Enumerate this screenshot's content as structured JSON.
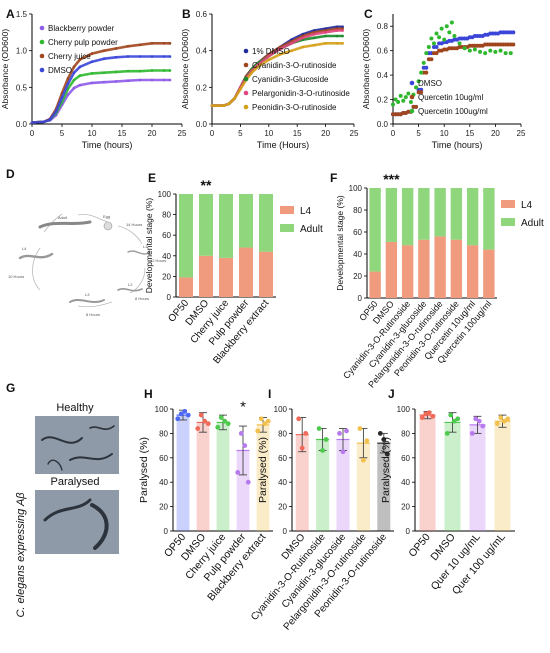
{
  "panel_letters": [
    "A",
    "B",
    "C",
    "D",
    "E",
    "F",
    "G",
    "H",
    "I",
    "J"
  ],
  "colors": {
    "purple": "#8e5ae8",
    "green": "#2fb82f",
    "brown": "#a0461e",
    "blue": "#3b46d8",
    "darkgreen": "#1a8a2a",
    "pink": "#e0457c",
    "gold": "#d4a017",
    "navy": "#1f2a9e",
    "l4": "#f09a7e",
    "adult": "#8fd67d",
    "red": "#f06a5a",
    "bar_blue": "#4c68f5",
    "bar_green": "#4ecb4e",
    "bar_purple": "#b879ef",
    "bar_gold": "#f2c04d",
    "bar_black": "#2a2a2a"
  },
  "D": {
    "labels": [
      "Egg",
      "L1",
      "L2",
      "L3",
      "L4",
      "Adult",
      "14 Hours",
      "12 Hours",
      "8 Hours",
      "8 Hours",
      "10 Hours"
    ]
  },
  "G": {
    "ylabel": "C. elegans expressing Aβ",
    "healthy": "Healthy",
    "paralysed": "Paralysed"
  },
  "chart_data": [
    {
      "panel": "A",
      "type": "line",
      "xlabel": "Time (hours)",
      "ylabel": "Absorbance (OD600)",
      "xlim": [
        0,
        25
      ],
      "ylim": [
        0,
        1.5
      ],
      "xticks": [
        "0",
        "5",
        "10",
        "15",
        "20",
        "25"
      ],
      "yticks": [
        "0.0",
        "0.5",
        "1.0",
        "1.5"
      ],
      "series": [
        {
          "name": "Blackberry powder",
          "color": "purple",
          "x": [
            0,
            2,
            3,
            4,
            5,
            6,
            7,
            8,
            10,
            12,
            14,
            16,
            18,
            20,
            22,
            23
          ],
          "y": [
            0.02,
            0.03,
            0.05,
            0.12,
            0.26,
            0.4,
            0.49,
            0.53,
            0.56,
            0.57,
            0.58,
            0.59,
            0.6,
            0.6,
            0.6,
            0.6
          ]
        },
        {
          "name": "Cherry pulp powder",
          "color": "green",
          "x": [
            0,
            2,
            3,
            4,
            5,
            6,
            7,
            8,
            10,
            12,
            14,
            16,
            18,
            20,
            22,
            23
          ],
          "y": [
            0.02,
            0.03,
            0.06,
            0.15,
            0.3,
            0.48,
            0.6,
            0.66,
            0.69,
            0.7,
            0.71,
            0.72,
            0.72,
            0.73,
            0.73,
            0.73
          ]
        },
        {
          "name": "Cherry juice",
          "color": "brown",
          "x": [
            0,
            2,
            3,
            4,
            5,
            6,
            7,
            8,
            10,
            12,
            14,
            16,
            18,
            20,
            22,
            23
          ],
          "y": [
            0.02,
            0.03,
            0.07,
            0.2,
            0.42,
            0.62,
            0.78,
            0.88,
            0.96,
            1.0,
            1.03,
            1.06,
            1.08,
            1.1,
            1.1,
            1.1
          ]
        },
        {
          "name": "DMSO",
          "color": "blue",
          "x": [
            0,
            2,
            3,
            4,
            5,
            6,
            7,
            8,
            10,
            12,
            14,
            16,
            18,
            20,
            22,
            23
          ],
          "y": [
            0.02,
            0.03,
            0.06,
            0.17,
            0.36,
            0.55,
            0.7,
            0.78,
            0.85,
            0.89,
            0.91,
            0.92,
            0.92,
            0.92,
            0.92,
            0.92
          ]
        }
      ]
    },
    {
      "panel": "B",
      "type": "line",
      "xlabel": "Time (Hours)",
      "ylabel": "Absorbance (OD600)",
      "xlim": [
        0,
        25
      ],
      "ylim": [
        0,
        0.6
      ],
      "xticks": [
        "0",
        "5",
        "10",
        "15",
        "20",
        "25"
      ],
      "yticks": [
        "0.0",
        "0.2",
        "0.4",
        "0.6"
      ],
      "series": [
        {
          "name": "1% DMSO",
          "color": "navy",
          "x": [
            0,
            2,
            3,
            4,
            5,
            6,
            7,
            8,
            10,
            12,
            14,
            16,
            18,
            20,
            22,
            23
          ],
          "y": [
            0.1,
            0.1,
            0.11,
            0.14,
            0.2,
            0.26,
            0.3,
            0.33,
            0.38,
            0.42,
            0.46,
            0.49,
            0.51,
            0.52,
            0.53,
            0.53
          ]
        },
        {
          "name": "Cyanidin-3-O-rutinoside",
          "color": "brown",
          "x": [
            0,
            2,
            3,
            4,
            5,
            6,
            7,
            8,
            10,
            12,
            14,
            16,
            18,
            20,
            22,
            23
          ],
          "y": [
            0.1,
            0.1,
            0.11,
            0.14,
            0.2,
            0.26,
            0.3,
            0.33,
            0.38,
            0.42,
            0.45,
            0.48,
            0.5,
            0.51,
            0.52,
            0.52
          ]
        },
        {
          "name": "Cyanidin-3-Glucoside",
          "color": "darkgreen",
          "x": [
            0,
            2,
            3,
            4,
            5,
            6,
            7,
            8,
            10,
            12,
            14,
            16,
            18,
            20,
            22,
            23
          ],
          "y": [
            0.1,
            0.1,
            0.11,
            0.14,
            0.2,
            0.25,
            0.3,
            0.33,
            0.37,
            0.41,
            0.44,
            0.46,
            0.47,
            0.48,
            0.48,
            0.48
          ]
        },
        {
          "name": "Pelargonidin-3-O-rutinoside",
          "color": "pink",
          "x": [
            0,
            2,
            3,
            4,
            5,
            6,
            7,
            8,
            10,
            12,
            14,
            16,
            18,
            20,
            22,
            23
          ],
          "y": [
            0.1,
            0.1,
            0.11,
            0.14,
            0.2,
            0.25,
            0.29,
            0.32,
            0.37,
            0.41,
            0.44,
            0.47,
            0.49,
            0.5,
            0.51,
            0.51
          ]
        },
        {
          "name": "Peonidin-3-O-rutinoside",
          "color": "gold",
          "x": [
            0,
            2,
            3,
            4,
            5,
            6,
            7,
            8,
            10,
            12,
            14,
            16,
            18,
            20,
            22,
            23
          ],
          "y": [
            0.1,
            0.1,
            0.11,
            0.14,
            0.19,
            0.24,
            0.28,
            0.31,
            0.35,
            0.38,
            0.4,
            0.42,
            0.43,
            0.44,
            0.44,
            0.44
          ]
        }
      ]
    },
    {
      "panel": "C",
      "type": "scatter",
      "xlabel": "Time (hours)",
      "ylabel": "Absorbance (OD600)",
      "xlim": [
        0,
        25
      ],
      "ylim": [
        0,
        0.9
      ],
      "xticks": [
        "0",
        "5",
        "10",
        "15",
        "20",
        "25"
      ],
      "yticks": [
        "0.0",
        "0.2",
        "0.4",
        "0.6",
        "0.8"
      ],
      "series": [
        {
          "name": "DMSO",
          "color": "blue",
          "x": [
            0,
            1,
            2,
            3,
            4,
            5,
            6,
            7,
            8,
            9,
            10,
            11,
            12,
            13,
            14,
            15,
            16,
            17,
            18,
            19,
            20,
            21,
            22,
            23
          ],
          "y": [
            0.08,
            0.08,
            0.09,
            0.1,
            0.14,
            0.28,
            0.46,
            0.58,
            0.63,
            0.66,
            0.67,
            0.68,
            0.69,
            0.7,
            0.7,
            0.71,
            0.72,
            0.72,
            0.73,
            0.74,
            0.74,
            0.75,
            0.75,
            0.75
          ]
        },
        {
          "name": "Quercetin 10ug/ml",
          "color": "brown",
          "x": [
            0,
            1,
            2,
            3,
            4,
            5,
            6,
            7,
            8,
            9,
            10,
            11,
            12,
            13,
            14,
            15,
            16,
            17,
            18,
            19,
            20,
            21,
            22,
            23
          ],
          "y": [
            0.08,
            0.08,
            0.09,
            0.1,
            0.14,
            0.26,
            0.42,
            0.53,
            0.58,
            0.6,
            0.61,
            0.62,
            0.62,
            0.63,
            0.63,
            0.64,
            0.64,
            0.64,
            0.65,
            0.65,
            0.65,
            0.65,
            0.65,
            0.65
          ]
        },
        {
          "name": "Quercetin 100ug/ml",
          "color": "green",
          "x": [
            0,
            0.5,
            1,
            1.5,
            2,
            2.5,
            3,
            3.5,
            4,
            4.5,
            5,
            5.5,
            6,
            6.5,
            7,
            7.5,
            8,
            8.5,
            9,
            9.5,
            10,
            10.5,
            11,
            11.5,
            12,
            13,
            14,
            15,
            16,
            17,
            18,
            19,
            20,
            21,
            22,
            23
          ],
          "y": [
            0.16,
            0.2,
            0.18,
            0.23,
            0.19,
            0.22,
            0.25,
            0.18,
            0.24,
            0.3,
            0.35,
            0.42,
            0.5,
            0.58,
            0.63,
            0.7,
            0.66,
            0.74,
            0.71,
            0.78,
            0.69,
            0.8,
            0.75,
            0.83,
            0.72,
            0.66,
            0.62,
            0.6,
            0.61,
            0.59,
            0.58,
            0.6,
            0.59,
            0.6,
            0.58,
            0.58
          ]
        }
      ]
    },
    {
      "panel": "E",
      "type": "bar",
      "stacked": true,
      "ylabel": "Developmental stage (%)",
      "ylim": [
        0,
        100
      ],
      "yticks": [
        "0",
        "20",
        "40",
        "60",
        "80",
        "100"
      ],
      "categories": [
        "OP50",
        "DMSO",
        "Cherry juice",
        "Pulp powder",
        "Blackberry extract"
      ],
      "series": [
        {
          "name": "L4",
          "color": "l4",
          "values": [
            19,
            40,
            38,
            48,
            44
          ]
        },
        {
          "name": "Adult",
          "color": "adult",
          "values": [
            81,
            60,
            62,
            52,
            56
          ]
        }
      ],
      "annotation": "**"
    },
    {
      "panel": "F",
      "type": "bar",
      "stacked": true,
      "ylabel": "Developmental stage (%)",
      "ylim": [
        0,
        100
      ],
      "yticks": [
        "0",
        "20",
        "40",
        "60",
        "80",
        "100"
      ],
      "categories": [
        "OP50",
        "DMSO",
        "Cyanidin-3-O-Rutinoside",
        "Cyanidin-3-glucoside",
        "Pelargonidin-3-O-rutinoside",
        "Peonidin-3-O-rutinoside",
        "Quercetin 10ug/ml",
        "Quercetin 100ug/ml"
      ],
      "series": [
        {
          "name": "L4",
          "color": "l4",
          "values": [
            24,
            51,
            48,
            53,
            56,
            53,
            48,
            44
          ]
        },
        {
          "name": "Adult",
          "color": "adult",
          "values": [
            76,
            49,
            52,
            47,
            44,
            47,
            52,
            56
          ]
        }
      ],
      "annotation": "***"
    },
    {
      "panel": "H",
      "type": "bar",
      "ylabel": "Paralysed (%)",
      "ylim": [
        0,
        100
      ],
      "yticks": [
        "0",
        "20",
        "40",
        "60",
        "80",
        "100"
      ],
      "categories": [
        "OP50",
        "DMSO",
        "Cherry juice",
        "Pulp powder",
        "Blackberry extract"
      ],
      "values": [
        95,
        89,
        89,
        66,
        87
      ],
      "errors": [
        4,
        8,
        6,
        20,
        6
      ],
      "colors": [
        "bar_blue",
        "red",
        "bar_green",
        "bar_purple",
        "bar_gold"
      ],
      "points": [
        [
          92,
          96,
          98,
          95
        ],
        [
          84,
          95,
          90,
          88
        ],
        [
          85,
          93,
          90,
          88
        ],
        [
          48,
          80,
          70,
          40
        ],
        [
          82,
          92,
          88,
          90
        ]
      ],
      "annotation": "*",
      "annotation_index": 3
    },
    {
      "panel": "I",
      "type": "bar",
      "ylabel": "Paralysed (%)",
      "ylim": [
        0,
        100
      ],
      "yticks": [
        "0",
        "20",
        "40",
        "60",
        "80",
        "100"
      ],
      "categories": [
        "DMSO",
        "Cyanidin-3-O-Rutinoside",
        "Cyanidin-3-glucoside",
        "Pelargonidin-3-O-rutinoside",
        "Peonidin-3-O-rutinoside"
      ],
      "values": [
        79,
        75,
        75,
        72,
        72
      ],
      "errors": [
        14,
        9,
        9,
        12,
        8
      ],
      "colors": [
        "red",
        "bar_green",
        "bar_purple",
        "bar_gold",
        "bar_black"
      ],
      "points": [
        [
          92,
          68,
          80
        ],
        [
          84,
          66,
          75
        ],
        [
          80,
          65,
          82
        ],
        [
          84,
          58,
          74
        ],
        [
          80,
          75,
          63
        ]
      ]
    },
    {
      "panel": "J",
      "type": "bar",
      "ylabel": "Paralysed (%)",
      "ylim": [
        0,
        100
      ],
      "yticks": [
        "0",
        "20",
        "40",
        "60",
        "80",
        "100"
      ],
      "categories": [
        "OP50",
        "DMSO",
        "Quer 10 ug/mL",
        "Quer 100 ug/mL"
      ],
      "values": [
        95,
        89,
        87,
        90
      ],
      "errors": [
        3,
        8,
        7,
        5
      ],
      "colors": [
        "red",
        "bar_green",
        "bar_purple",
        "bar_gold"
      ],
      "points": [
        [
          93,
          96,
          97,
          94
        ],
        [
          80,
          95,
          90,
          92
        ],
        [
          80,
          92,
          90,
          86
        ],
        [
          88,
          93,
          90,
          92
        ]
      ]
    }
  ]
}
